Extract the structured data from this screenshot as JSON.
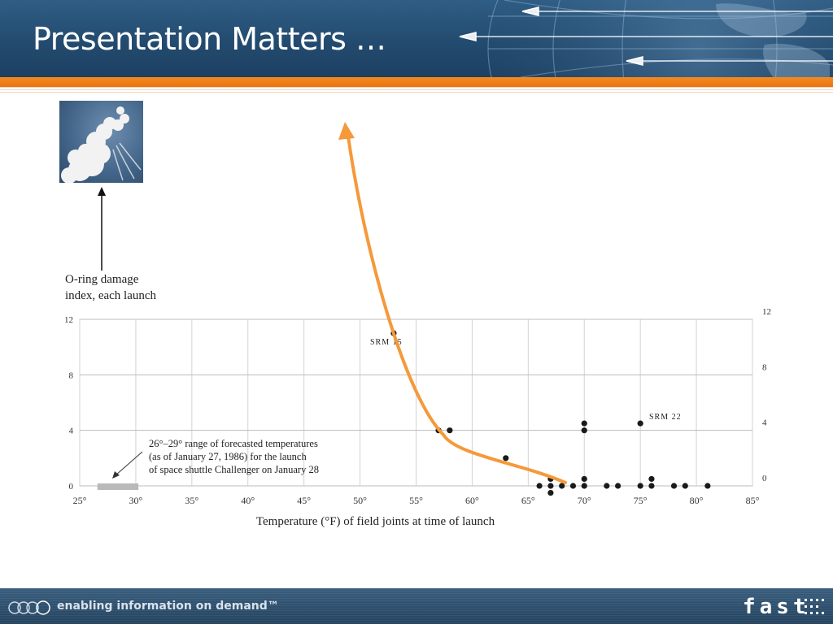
{
  "slide": {
    "title": "Presentation Matters …",
    "colors": {
      "header": "#234b6f",
      "accent": "#f58a1f",
      "trend": "#f5993a",
      "point": "#1a1a1a"
    }
  },
  "photo": {
    "icon": "challenger-explosion-photo"
  },
  "chart_data": {
    "type": "scatter",
    "ylabel": "O-ring damage\nindex, each launch",
    "xlabel": "Temperature (°F) of field joints at time of launch",
    "x_ticks": [
      "25°",
      "30°",
      "35°",
      "40°",
      "45°",
      "50°",
      "55°",
      "60°",
      "65°",
      "70°",
      "75°",
      "80°",
      "85°"
    ],
    "x_tick_values": [
      25,
      30,
      35,
      40,
      45,
      50,
      55,
      60,
      65,
      70,
      75,
      80,
      85
    ],
    "y_ticks_left": [
      "0",
      "4",
      "8",
      "12"
    ],
    "y_ticks_right": [
      "0",
      "4",
      "8",
      "12"
    ],
    "y_tick_values": [
      0,
      4,
      8,
      12
    ],
    "xlim": [
      25,
      85
    ],
    "ylim": [
      0,
      12
    ],
    "grid": true,
    "forecast_range": [
      26,
      29
    ],
    "annotations": {
      "forecast": [
        "26°–29° range of forecasted temperatures",
        "(as of January 27, 1986) for the launch",
        "of space shuttle Challenger on January 28"
      ],
      "srm15": "SRM 15",
      "srm22": "SRM 22"
    },
    "points": [
      {
        "x": 53,
        "y": 11
      },
      {
        "x": 57,
        "y": 4
      },
      {
        "x": 58,
        "y": 4
      },
      {
        "x": 63,
        "y": 2
      },
      {
        "x": 66,
        "y": 0
      },
      {
        "x": 67,
        "y": 0.5
      },
      {
        "x": 67,
        "y": 0
      },
      {
        "x": 67,
        "y": -0.5
      },
      {
        "x": 68,
        "y": 0
      },
      {
        "x": 69,
        "y": 0
      },
      {
        "x": 70,
        "y": 4.5
      },
      {
        "x": 70,
        "y": 4
      },
      {
        "x": 70,
        "y": 0.5
      },
      {
        "x": 70,
        "y": 0
      },
      {
        "x": 72,
        "y": 0
      },
      {
        "x": 73,
        "y": 0
      },
      {
        "x": 75,
        "y": 4.5
      },
      {
        "x": 75,
        "y": 0
      },
      {
        "x": 76,
        "y": 0.5
      },
      {
        "x": 76,
        "y": 0
      },
      {
        "x": 78,
        "y": 0
      },
      {
        "x": 79,
        "y": 0
      },
      {
        "x": 81,
        "y": 0
      }
    ]
  },
  "footer": {
    "tagline": "enabling information on demand™",
    "logo": "fast"
  }
}
